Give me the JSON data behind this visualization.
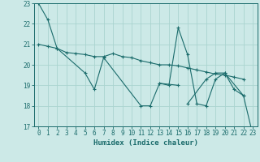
{
  "xlabel": "Humidex (Indice chaleur)",
  "bg_color": "#cce9e7",
  "grid_color": "#aad4d0",
  "line_color": "#1a6b6b",
  "series": [
    {
      "x": [
        0,
        1,
        2,
        5,
        6,
        7,
        11,
        12,
        13,
        15
      ],
      "y": [
        23.0,
        22.2,
        20.8,
        19.6,
        18.8,
        20.35,
        18.0,
        18.0,
        19.1,
        19.0
      ]
    },
    {
      "x": [
        0,
        1,
        2,
        3,
        4,
        5,
        6,
        7,
        8,
        9,
        10,
        11,
        12,
        13,
        14,
        15,
        16,
        17,
        18,
        19,
        20,
        21,
        22
      ],
      "y": [
        21.0,
        20.9,
        20.8,
        20.6,
        20.55,
        20.5,
        20.4,
        20.4,
        20.55,
        20.4,
        20.35,
        20.2,
        20.1,
        20.0,
        20.0,
        19.95,
        19.85,
        19.75,
        19.65,
        19.55,
        19.5,
        19.4,
        19.3
      ]
    },
    {
      "x": [
        13,
        14,
        15,
        16,
        17,
        18,
        19,
        20,
        21,
        22
      ],
      "y": [
        19.1,
        19.0,
        21.8,
        20.5,
        18.1,
        18.0,
        19.3,
        19.6,
        18.8,
        18.5
      ]
    },
    {
      "x": [
        16,
        18,
        19,
        20,
        22,
        23
      ],
      "y": [
        18.1,
        19.3,
        19.6,
        19.6,
        18.5,
        16.6
      ]
    }
  ],
  "ylim": [
    17,
    23
  ],
  "xlim": [
    -0.5,
    23.5
  ],
  "yticks": [
    17,
    18,
    19,
    20,
    21,
    22,
    23
  ],
  "xticks": [
    0,
    1,
    2,
    3,
    4,
    5,
    6,
    7,
    8,
    9,
    10,
    11,
    12,
    13,
    14,
    15,
    16,
    17,
    18,
    19,
    20,
    21,
    22,
    23
  ],
  "tick_fontsize": 5.5,
  "xlabel_fontsize": 6.5
}
